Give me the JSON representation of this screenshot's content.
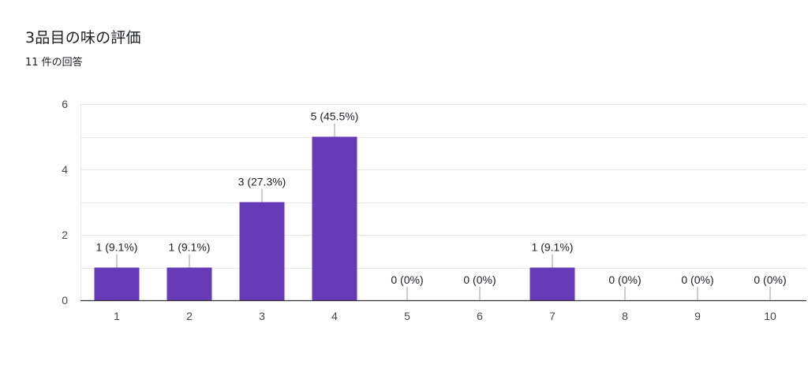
{
  "header": {
    "title": "3品目の味の評価",
    "response_count": "11 件の回答"
  },
  "colors": {
    "bar": "#673ab7",
    "grid": "#e6e6e6",
    "axis": "#333333",
    "leader": "#999999"
  },
  "chart_data": {
    "type": "bar",
    "title": "3品目の味の評価",
    "subtitle": "11 件の回答",
    "xlabel": "",
    "ylabel": "",
    "categories": [
      "1",
      "2",
      "3",
      "4",
      "5",
      "6",
      "7",
      "8",
      "9",
      "10"
    ],
    "values": [
      1,
      1,
      3,
      5,
      0,
      0,
      1,
      0,
      0,
      0
    ],
    "data_labels": [
      "1 (9.1%)",
      "1 (9.1%)",
      "3 (27.3%)",
      "5 (45.5%)",
      "0 (0%)",
      "0 (0%)",
      "1 (9.1%)",
      "0 (0%)",
      "0 (0%)",
      "0 (0%)"
    ],
    "y_ticks": [
      "0",
      "2",
      "4",
      "6"
    ],
    "ylim": [
      0,
      6
    ],
    "grid": true,
    "legend": "none"
  }
}
